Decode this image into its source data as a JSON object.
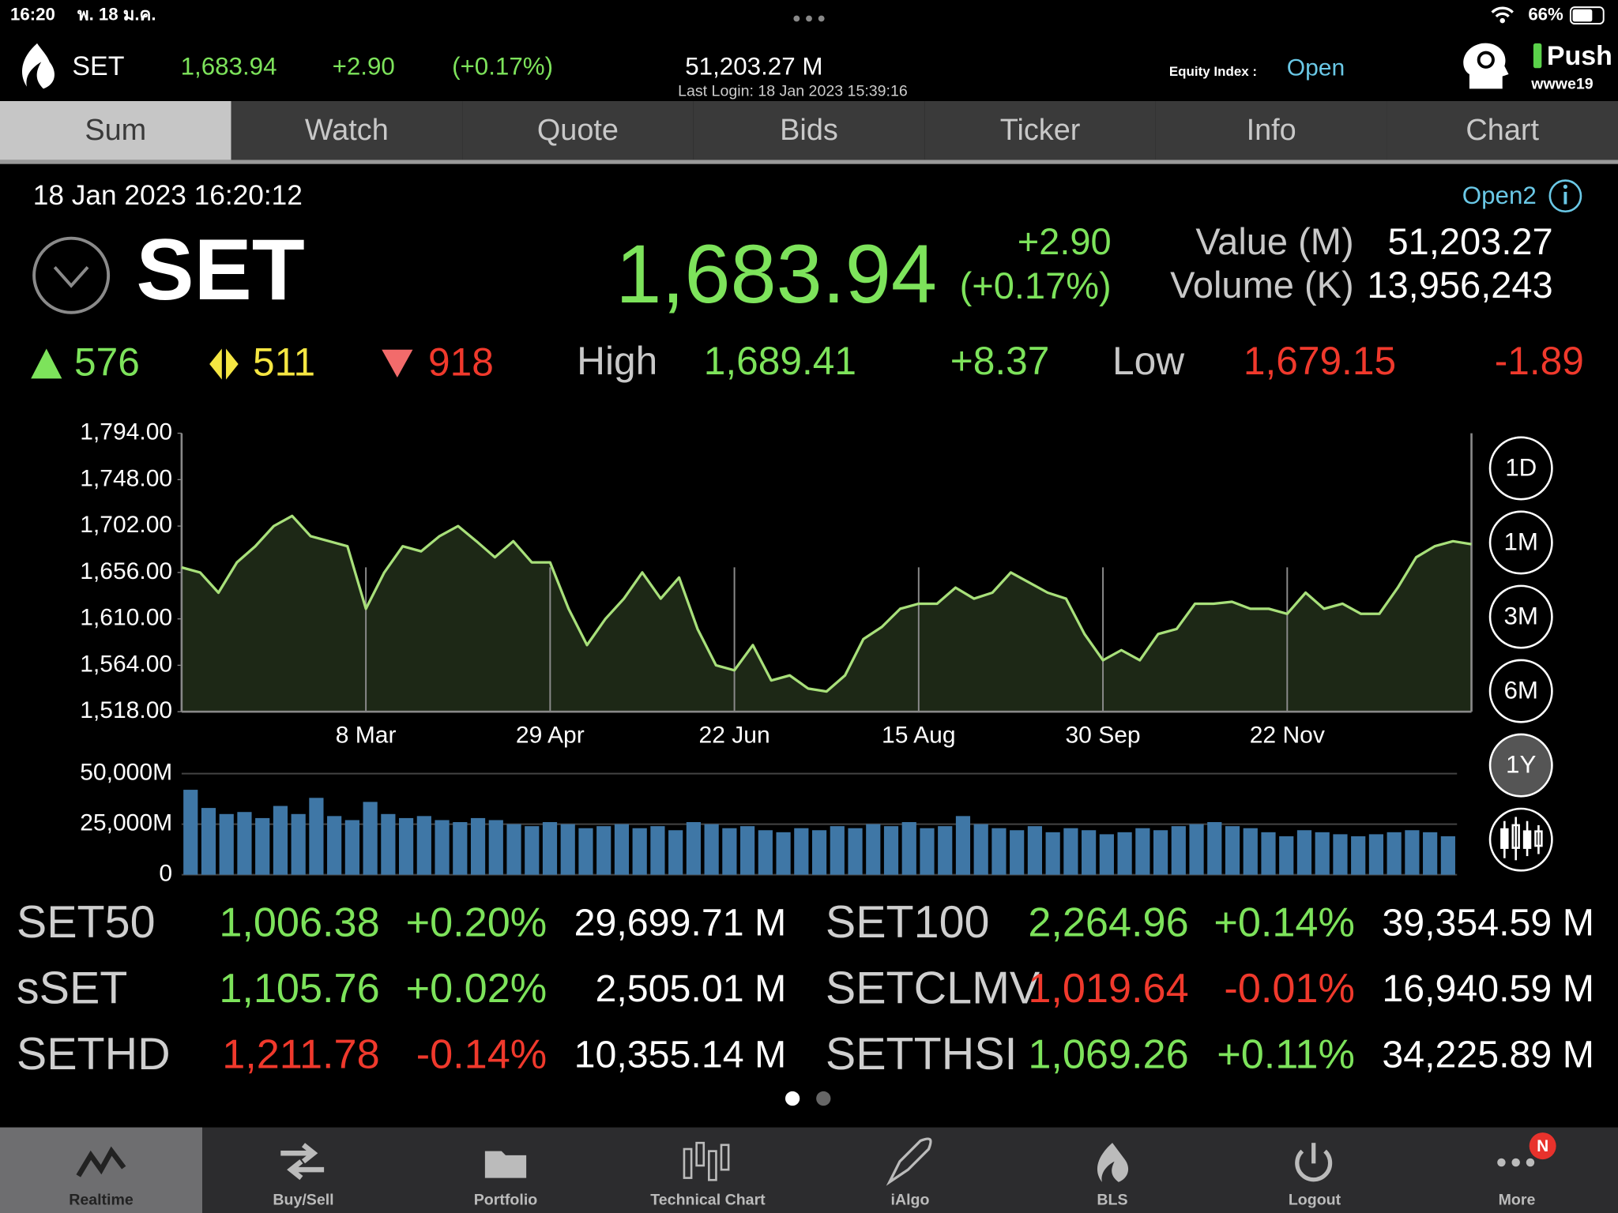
{
  "status_bar": {
    "time": "16:20",
    "date": "พ. 18 ม.ค.",
    "battery": "66%"
  },
  "header": {
    "symbol": "SET",
    "last": "1,683.94",
    "change": "+2.90",
    "percent": "(+0.17%)",
    "value": "51,203.27 M",
    "last_login": "Last Login: 18 Jan 2023 15:39:16",
    "equity_label": "Equity Index :",
    "equity_status": "Open",
    "push": "Push",
    "user": "wwwe19"
  },
  "tabs": [
    "Sum",
    "Watch",
    "Quote",
    "Bids",
    "Ticker",
    "Info",
    "Chart"
  ],
  "summary": {
    "datetime": "18 Jan 2023 16:20:12",
    "session": "Open2",
    "symbol": "SET",
    "last": "1,683.94",
    "change": "+2.90",
    "percent": "(+0.17%)",
    "value_label": "Value (M)",
    "value": "51,203.27",
    "volume_label": "Volume (K)",
    "volume": "13,956,243",
    "advances": "576",
    "unchanged": "511",
    "declines": "918",
    "high_label": "High",
    "high": "1,689.41",
    "high_change": "+8.37",
    "low_label": "Low",
    "low": "1,679.15",
    "low_change": "-1.89"
  },
  "chart_data": [
    {
      "type": "line",
      "categories": [
        null,
        null,
        null,
        null,
        null,
        null,
        null,
        null,
        null,
        null,
        "8 Mar",
        null,
        null,
        null,
        null,
        null,
        null,
        null,
        null,
        null,
        "29 Apr",
        null,
        null,
        null,
        null,
        null,
        null,
        null,
        null,
        null,
        "22 Jun",
        null,
        null,
        null,
        null,
        null,
        null,
        null,
        null,
        null,
        "15 Aug",
        null,
        null,
        null,
        null,
        null,
        null,
        null,
        null,
        null,
        "30 Sep",
        null,
        null,
        null,
        null,
        null,
        null,
        null,
        null,
        null,
        "22 Nov",
        null,
        null,
        null,
        null,
        null,
        null,
        null,
        null,
        null,
        null
      ],
      "series": [
        {
          "color": "#a8e07a",
          "fill": "#1d2816",
          "values": [
            1661,
            1656,
            1636,
            1666,
            1682,
            1702,
            1712,
            1692,
            1687,
            1682,
            1620,
            1656,
            1682,
            1677,
            1692,
            1702,
            1687,
            1671,
            1687,
            1666,
            1666,
            1620,
            1584,
            1610,
            1630,
            1656,
            1630,
            1651,
            1600,
            1564,
            1559,
            1584,
            1549,
            1554,
            1541,
            1538,
            1554,
            1590,
            1602,
            1620,
            1625,
            1625,
            1641,
            1630,
            1636,
            1656,
            1646,
            1636,
            1630,
            1595,
            1569,
            1579,
            1569,
            1595,
            1600,
            1625,
            1625,
            1627,
            1620,
            1620,
            1615,
            1636,
            1620,
            1625,
            1615,
            1615,
            1641,
            1671,
            1682,
            1687,
            1684
          ]
        }
      ],
      "ylim": [
        1518,
        1794
      ],
      "yticks": [
        {
          "value": 1794,
          "label": "1,794.00"
        },
        {
          "value": 1748,
          "label": "1,748.00"
        },
        {
          "value": 1702,
          "label": "1,702.00"
        },
        {
          "value": 1656,
          "label": "1,656.00"
        },
        {
          "value": 1610,
          "label": "1,610.00"
        },
        {
          "value": 1564,
          "label": "1,564.00"
        },
        {
          "value": 1518,
          "label": "1,518.00"
        }
      ],
      "grid": true
    },
    {
      "type": "bar",
      "color": "#3f77a6",
      "values": [
        42000,
        33000,
        30000,
        31000,
        28000,
        34000,
        30000,
        38000,
        29000,
        27000,
        36000,
        30000,
        28000,
        29000,
        27000,
        26000,
        28000,
        27000,
        25000,
        24000,
        26000,
        25000,
        23000,
        24000,
        25000,
        23000,
        24000,
        22000,
        26000,
        25000,
        23000,
        24000,
        22000,
        21000,
        23000,
        22000,
        24000,
        23000,
        25000,
        24000,
        26000,
        23000,
        24000,
        29000,
        25000,
        23000,
        22000,
        24000,
        21000,
        23000,
        22000,
        20000,
        21000,
        23000,
        22000,
        24000,
        25000,
        26000,
        24000,
        23000,
        21000,
        19000,
        22000,
        21000,
        20000,
        19000,
        20000,
        21000,
        22000,
        21000,
        19000
      ],
      "ylim": [
        0,
        50000
      ],
      "yticks": [
        {
          "value": 50000,
          "label": "50,000M"
        },
        {
          "value": 25000,
          "label": "25,000M"
        },
        0
      ],
      "grid": true
    }
  ],
  "periods": [
    "1D",
    "1M",
    "3M",
    "6M",
    "1Y"
  ],
  "selected_period": 4,
  "indices": {
    "rows": [
      [
        {
          "name": "SET50",
          "last": "1,006.38",
          "change": "+0.20%",
          "value": "29,699.71 M"
        },
        {
          "name": "SET100",
          "last": "2,264.96",
          "change": "+0.14%",
          "value": "39,354.59 M"
        }
      ],
      [
        {
          "name": "sSET",
          "last": "1,105.76",
          "change": "+0.02%",
          "value": "2,505.01 M"
        },
        {
          "name": "SETCLMV",
          "last": "1,019.64",
          "change": "-0.01%",
          "value": "16,940.59 M"
        }
      ],
      [
        {
          "name": "SETHD",
          "last": "1,211.78",
          "change": "-0.14%",
          "value": "10,355.14 M"
        },
        {
          "name": "SETTHSI",
          "last": "1,069.26",
          "change": "+0.11%",
          "value": "34,225.89 M"
        }
      ]
    ]
  },
  "nav": [
    "Realtime",
    "Buy/Sell",
    "Portfolio",
    "Technical Chart",
    "iAlgo",
    "BLS",
    "Logout",
    "More"
  ],
  "more_badge": "N"
}
